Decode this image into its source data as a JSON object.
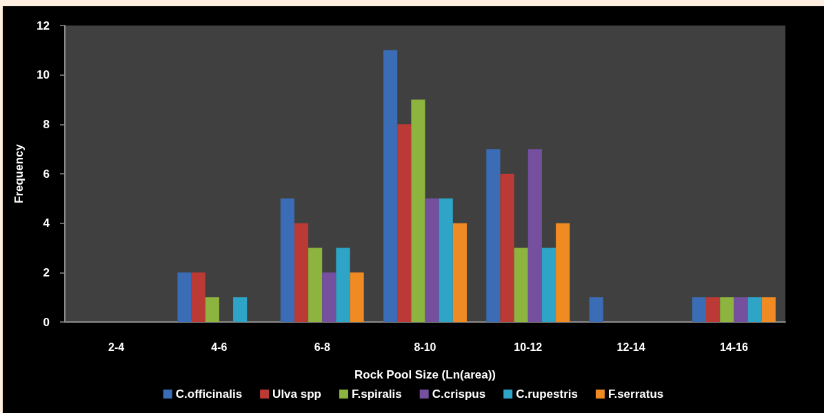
{
  "chart_data": {
    "type": "bar",
    "xlabel": "Rock Pool Size (Ln(area))",
    "ylabel": "Frequency",
    "categories": [
      "2-4",
      "4-6",
      "6-8",
      "8-10",
      "10-12",
      "12-14",
      "14-16"
    ],
    "series": [
      {
        "name": "C.officinalis",
        "color": "#3a6db5",
        "values": [
          0,
          2,
          5,
          11,
          7,
          1,
          1
        ]
      },
      {
        "name": "Ulva spp",
        "color": "#bc3a36",
        "values": [
          0,
          2,
          4,
          8,
          6,
          0,
          1
        ]
      },
      {
        "name": "F.spiralis",
        "color": "#8cb43e",
        "values": [
          0,
          1,
          3,
          9,
          3,
          0,
          1
        ]
      },
      {
        "name": "C.crispus",
        "color": "#74509e",
        "values": [
          0,
          0,
          2,
          5,
          7,
          0,
          1
        ]
      },
      {
        "name": "C.rupestris",
        "color": "#2ea5c6",
        "values": [
          0,
          1,
          3,
          5,
          3,
          0,
          1
        ]
      },
      {
        "name": "F.serratus",
        "color": "#f08a22",
        "values": [
          0,
          0,
          2,
          4,
          4,
          0,
          1
        ]
      }
    ],
    "ylim": [
      0,
      12
    ],
    "yticks": [
      0,
      2,
      4,
      6,
      8,
      10,
      12
    ],
    "grid": false,
    "legend": "bottom"
  }
}
